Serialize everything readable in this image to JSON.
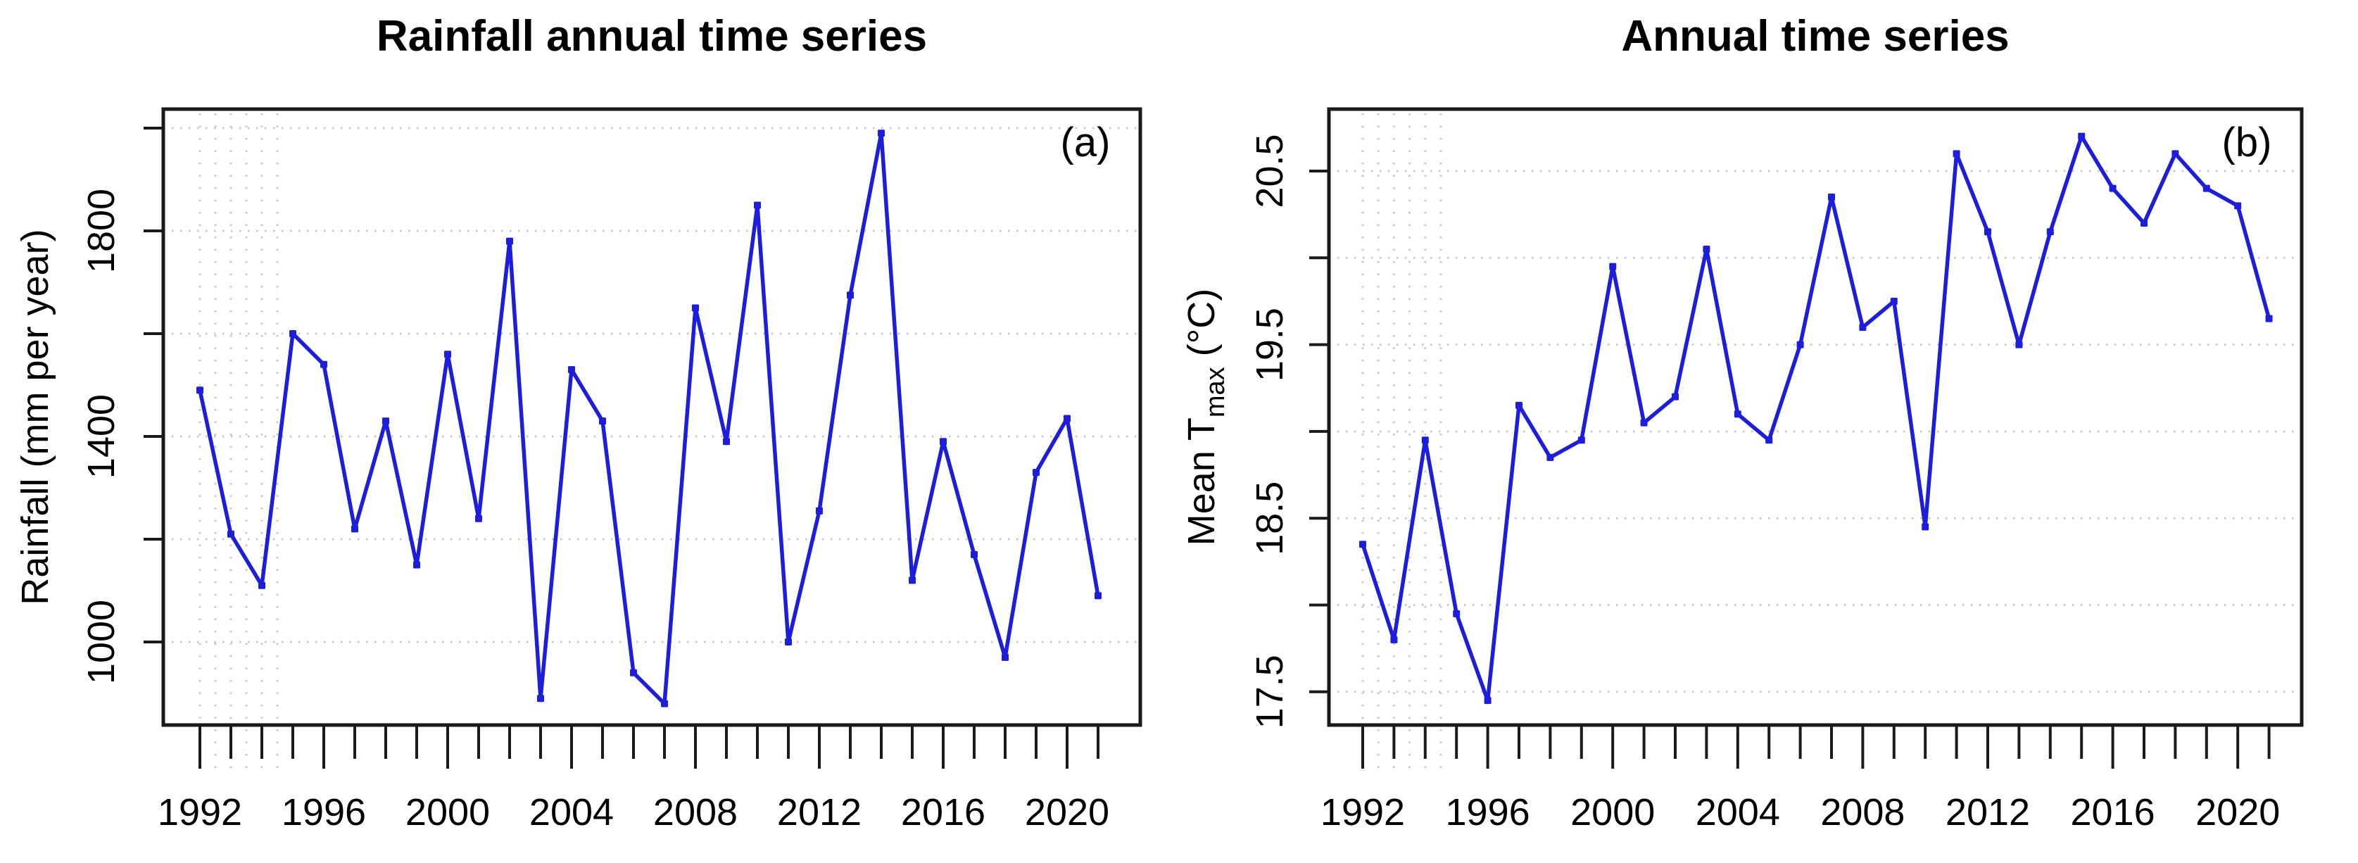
{
  "figure": {
    "background": "#ffffff",
    "description": "Two R-style line charts side by side: annual rainfall and annual mean maximum temperature, 1992-2021"
  },
  "colors": {
    "series_line": "#1d1ddd",
    "marker": "#1d1ddd",
    "frame": "#1a1a1a",
    "tick": "#1a1a1a",
    "gridline": "#c9c9c9",
    "text": "#000000"
  },
  "chart_data": [
    {
      "type": "line",
      "panel_label": "(a)",
      "title": "Rainfall annual time series",
      "ylabel": "Rainfall (mm per year)",
      "ylabel_parts": [
        {
          "text": "Rainfall (mm per year)",
          "subscript": false
        }
      ],
      "xlabel": "",
      "x": [
        1992,
        1993,
        1994,
        1995,
        1996,
        1997,
        1998,
        1999,
        2000,
        2001,
        2002,
        2003,
        2004,
        2005,
        2006,
        2007,
        2008,
        2009,
        2010,
        2011,
        2012,
        2013,
        2014,
        2015,
        2016,
        2017,
        2018,
        2019,
        2020,
        2021
      ],
      "values": [
        1490,
        1210,
        1110,
        1600,
        1540,
        1220,
        1430,
        1150,
        1560,
        1240,
        1780,
        890,
        1530,
        1430,
        940,
        880,
        1650,
        1390,
        1850,
        1000,
        1255,
        1675,
        1990,
        1120,
        1390,
        1170,
        970,
        1330,
        1435,
        1090
      ],
      "x_tick_labels": [
        "1992",
        "1996",
        "2000",
        "2004",
        "2008",
        "2012",
        "2016",
        "2020"
      ],
      "x_tick_label_years": [
        1992,
        1996,
        2000,
        2004,
        2008,
        2012,
        2016,
        2020
      ],
      "y_ticks": [
        1000,
        1200,
        1400,
        1600,
        1800,
        2000
      ],
      "y_tick_labels": [
        "1000",
        "1400",
        "1800"
      ],
      "y_tick_label_values": [
        1000,
        1400,
        1800
      ],
      "ylim": [
        840,
        2040
      ],
      "xlim": [
        1990.8,
        2022.3
      ],
      "grid": "dotted horizontal gridlines at every y tick; short dotted vertical gridlines near 1992-1994 only",
      "legend": "none",
      "line_color": "#1d1ddd",
      "marker": "filled-square"
    },
    {
      "type": "line",
      "panel_label": "(b)",
      "title": "Annual time series",
      "ylabel": "Mean Tmax (°C)",
      "ylabel_parts": [
        {
          "text": "Mean T",
          "subscript": false
        },
        {
          "text": "max",
          "subscript": true
        },
        {
          "text": " (°C)",
          "subscript": false
        }
      ],
      "xlabel": "",
      "x": [
        1992,
        1993,
        1994,
        1995,
        1996,
        1997,
        1998,
        1999,
        2000,
        2001,
        2002,
        2003,
        2004,
        2005,
        2006,
        2007,
        2008,
        2009,
        2010,
        2011,
        2012,
        2013,
        2014,
        2015,
        2016,
        2017,
        2018,
        2019,
        2020,
        2021
      ],
      "values": [
        18.35,
        17.8,
        18.95,
        17.95,
        17.45,
        19.15,
        18.85,
        18.95,
        19.95,
        19.05,
        19.2,
        20.05,
        19.1,
        18.95,
        19.5,
        20.35,
        19.6,
        19.75,
        18.45,
        20.6,
        20.15,
        19.5,
        20.15,
        20.7,
        20.4,
        20.2,
        20.6,
        20.4,
        20.3,
        19.65
      ],
      "x_tick_labels": [
        "1992",
        "1996",
        "2000",
        "2004",
        "2008",
        "2012",
        "2016",
        "2020"
      ],
      "x_tick_label_years": [
        1992,
        1996,
        2000,
        2004,
        2008,
        2012,
        2016,
        2020
      ],
      "y_ticks": [
        17.5,
        18.0,
        18.5,
        19.0,
        19.5,
        20.0,
        20.5
      ],
      "y_tick_labels": [
        "17.5",
        "18.5",
        "19.5",
        "20.5"
      ],
      "y_tick_label_values": [
        17.5,
        18.5,
        19.5,
        20.5
      ],
      "ylim": [
        17.3,
        20.9
      ],
      "xlim": [
        1990.8,
        2022.3
      ],
      "grid": "dotted horizontal gridlines at every y tick; short dotted vertical gridlines near 1992-1994 only",
      "legend": "none",
      "line_color": "#1d1ddd",
      "marker": "filled-square"
    }
  ]
}
